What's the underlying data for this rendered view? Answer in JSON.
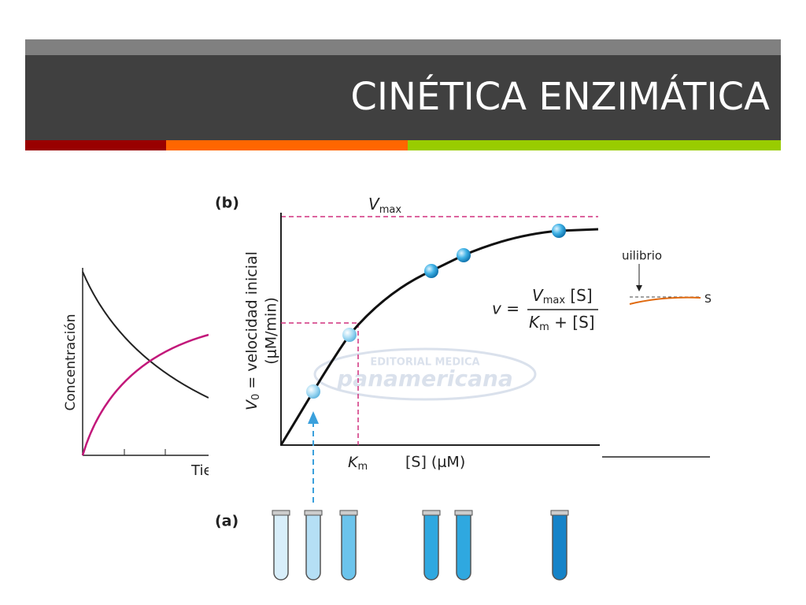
{
  "header": {
    "title": "CINÉTICA ENZIMÁTICA"
  },
  "background_left": {
    "y_label": "Concentración",
    "x_label": "Tie"
  },
  "background_right": {
    "annotation": "uilibrio",
    "curve_label": "S"
  },
  "figure": {
    "panel_b": "(b)",
    "panel_a": "(a)",
    "vmax": {
      "main": "V",
      "sub": "max"
    },
    "y_label": {
      "v": "V",
      "sub": "0",
      "rest": " = velocidad inicial",
      "units": "(μM/min)"
    },
    "km": {
      "main": "K",
      "sub": "m"
    },
    "x_label": "[S] (μM)",
    "equation": {
      "lhs": "v =",
      "num_main": "V",
      "num_sub": "max",
      "num_rest": " [S]",
      "den_main": "K",
      "den_sub": "m",
      "den_rest": " + [S]"
    },
    "watermark": {
      "top": "EDITORIAL MEDICA",
      "bottom": "panamericana"
    }
  }
}
